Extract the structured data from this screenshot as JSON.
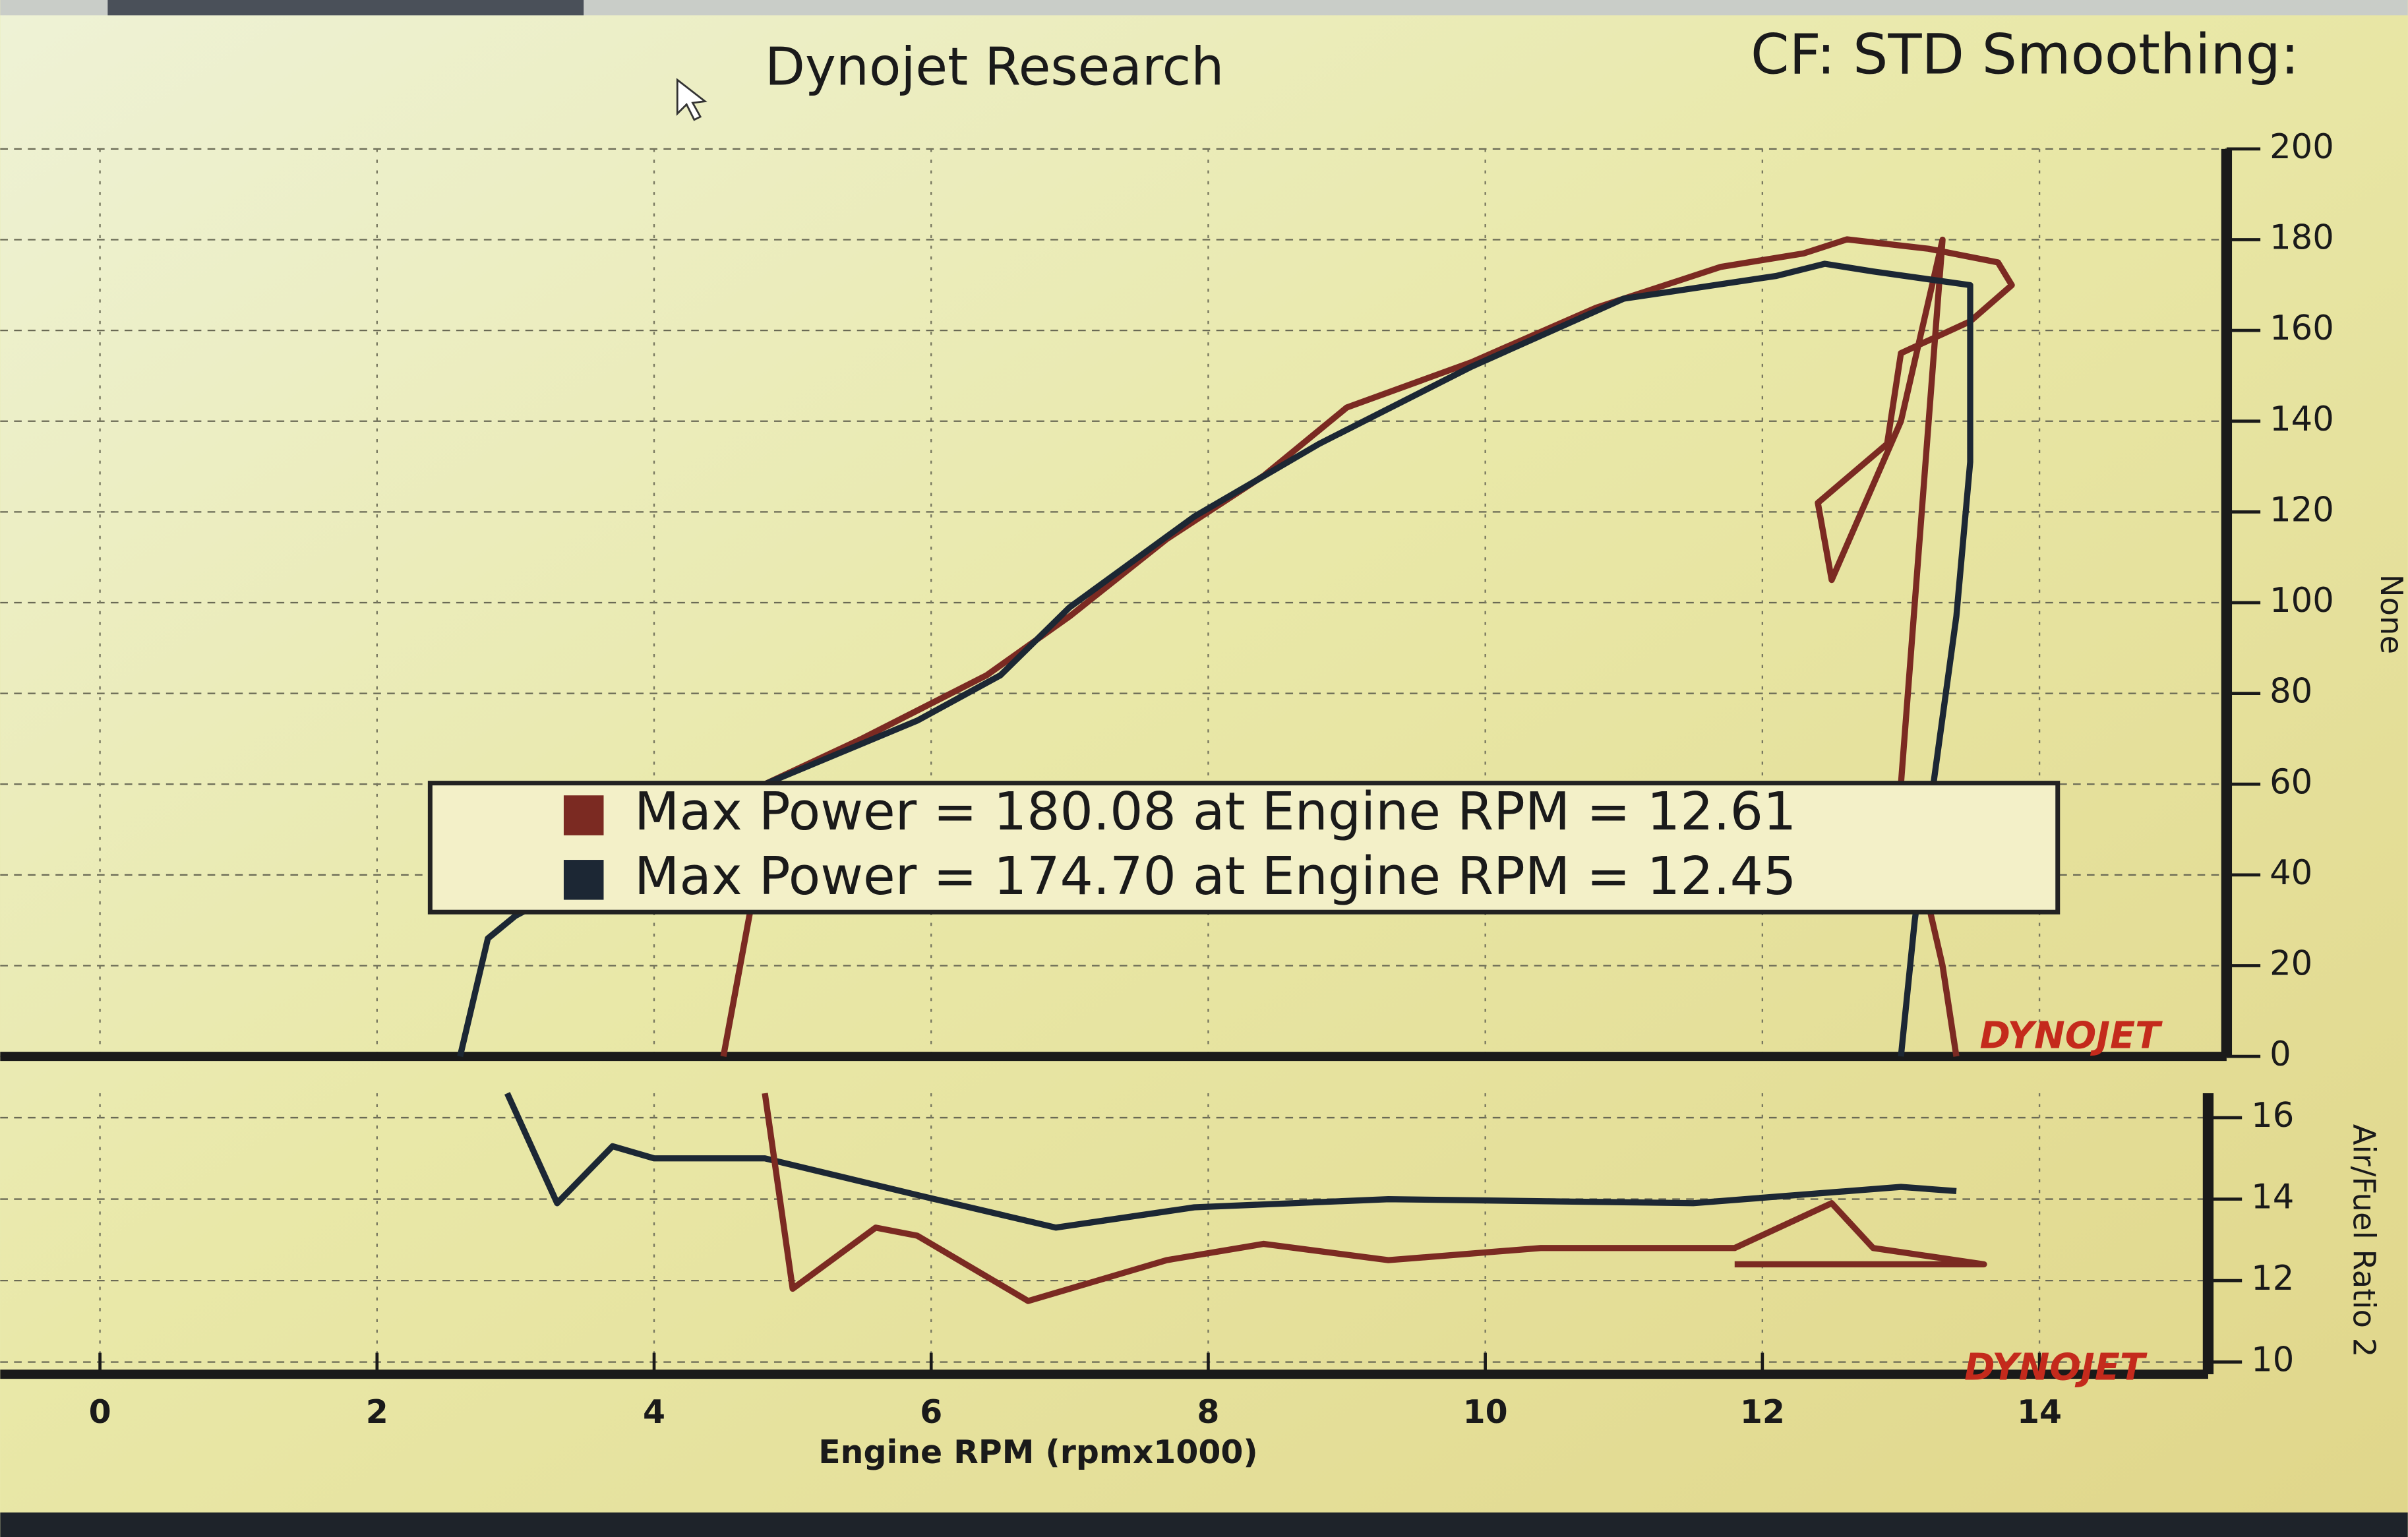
{
  "chart_data": [
    {
      "type": "line",
      "title": "Dynojet Research",
      "subtitle": "CF: STD Smoothing:",
      "y_label": "None",
      "watermark": "DYNOJET",
      "xlim": [
        -0.72,
        15.24
      ],
      "ylim": [
        0,
        200
      ],
      "yticks": [
        0,
        20,
        40,
        60,
        80,
        100,
        120,
        140,
        160,
        180,
        200
      ],
      "grid": true,
      "series": [
        {
          "name": "Max Power = 180.08 at Engine RPM = 12.61",
          "color": "#7b2a22",
          "x": [
            4.5,
            4.7,
            4.8,
            5.5,
            6.4,
            7.0,
            7.7,
            8.4,
            9.0,
            9.9,
            10.8,
            11.7,
            12.3,
            12.61,
            13.2,
            13.7,
            13.8,
            13.5,
            13.0,
            12.9,
            12.4,
            12.5,
            13.0,
            13.3,
            13.0,
            13.3,
            13.4
          ],
          "values": [
            0,
            33,
            60,
            70,
            84,
            97,
            114,
            128,
            143,
            153,
            165,
            174,
            177,
            180.08,
            178,
            175,
            170,
            162,
            155,
            135,
            122,
            105,
            140,
            180,
            60,
            20,
            0
          ]
        },
        {
          "name": "Max Power = 174.70 at Engine RPM = 12.45",
          "color": "#1c2734",
          "x": [
            2.6,
            2.8,
            3.0,
            4.8,
            5.9,
            6.5,
            7.0,
            7.9,
            8.8,
            9.9,
            11.0,
            12.1,
            12.45,
            12.8,
            13.5,
            13.5,
            13.4,
            13.1,
            13.0
          ],
          "values": [
            0,
            26,
            31,
            60,
            74,
            84,
            99,
            119,
            135,
            152,
            167,
            172,
            174.7,
            173,
            170,
            131,
            97,
            30,
            0
          ]
        }
      ]
    },
    {
      "type": "line",
      "x_label": "Engine RPM (rpmx1000)",
      "y_label": "Air/Fuel Ratio 2",
      "watermark": "DYNOJET",
      "xlim": [
        -0.72,
        15.24
      ],
      "xticks": [
        0,
        2,
        4,
        6,
        8,
        10,
        12,
        14
      ],
      "ylim": [
        9.7,
        16.6
      ],
      "yticks": [
        10,
        12,
        14,
        16
      ],
      "grid": true,
      "series": [
        {
          "color": "#1c2734",
          "x": [
            2.94,
            3.3,
            3.7,
            4.0,
            4.8,
            5.9,
            6.9,
            7.9,
            9.3,
            11.5,
            13.0,
            13.4
          ],
          "values": [
            16.6,
            13.9,
            15.3,
            15.0,
            15.0,
            14.1,
            13.3,
            13.8,
            14.0,
            13.9,
            14.3,
            14.2
          ]
        },
        {
          "color": "#7b2a22",
          "x": [
            4.8,
            5.0,
            5.6,
            5.9,
            6.7,
            7.7,
            8.4,
            9.3,
            10.4,
            11.8,
            12.5,
            12.8,
            13.6,
            11.8
          ],
          "values": [
            16.6,
            11.8,
            13.3,
            13.1,
            11.5,
            12.5,
            12.9,
            12.5,
            12.8,
            12.8,
            13.9,
            12.8,
            12.4,
            12.4
          ]
        }
      ]
    }
  ]
}
